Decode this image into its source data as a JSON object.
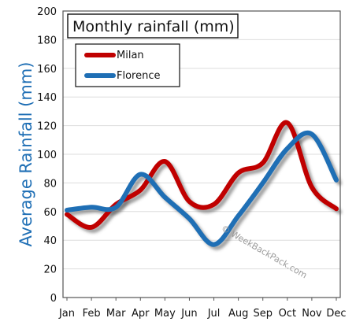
{
  "chart_data": {
    "type": "line",
    "title": "Monthly rainfall (mm)",
    "ylabel": "Average Rainfall (mm)",
    "xlabel": "",
    "categories": [
      "Jan",
      "Feb",
      "Mar",
      "Apr",
      "May",
      "Jun",
      "Jul",
      "Aug",
      "Sep",
      "Oct",
      "Nov",
      "Dec"
    ],
    "ylim": [
      0,
      200
    ],
    "yticks": [
      0,
      20,
      40,
      60,
      80,
      100,
      120,
      140,
      160,
      180,
      200
    ],
    "grid": true,
    "legend_position": "top-left",
    "series": [
      {
        "name": "Milan",
        "color": "#c00000",
        "values": [
          58,
          49,
          65,
          75,
          95,
          67,
          65,
          87,
          94,
          122,
          77,
          62
        ]
      },
      {
        "name": "Florence",
        "color": "#1f6fb5",
        "values": [
          61,
          63,
          63,
          86,
          70,
          55,
          37,
          57,
          80,
          104,
          114,
          82
        ]
      }
    ],
    "watermark": "© WeekBackPack.com"
  }
}
